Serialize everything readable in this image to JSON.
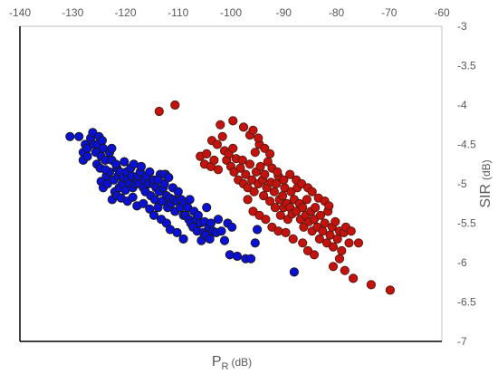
{
  "chart_data": {
    "type": "scatter",
    "title": "",
    "xlabel": {
      "main": "P",
      "sub": "R",
      "unit": "(dB)"
    },
    "ylabel": {
      "main": "SIR",
      "unit": "(dB)"
    },
    "xlim": [
      -140,
      -60
    ],
    "ylim": [
      -7,
      -3
    ],
    "x_ticks": [
      -140,
      -130,
      -120,
      -110,
      -100,
      -90,
      -80,
      -70,
      -60
    ],
    "y_ticks": [
      -3,
      -3.5,
      -4,
      -4.5,
      -5,
      -5.5,
      -6,
      -6.5,
      -7
    ],
    "x_axis_position": "top",
    "y_axis_position": "right",
    "grid": false,
    "legend": "none",
    "series": [
      {
        "color": "#0a10d8",
        "edge_color": "#1a1a1a",
        "points": [
          [
            -130.5,
            -4.4
          ],
          [
            -128.8,
            -4.4
          ],
          [
            -128,
            -4.6
          ],
          [
            -128,
            -4.7
          ],
          [
            -127.6,
            -4.5
          ],
          [
            -127.2,
            -4.55
          ],
          [
            -127.2,
            -4.65
          ],
          [
            -126.6,
            -4.42
          ],
          [
            -126.2,
            -4.35
          ],
          [
            -126,
            -4.5
          ],
          [
            -125.6,
            -4.6
          ],
          [
            -125.4,
            -4.75
          ],
          [
            -125.2,
            -4.5
          ],
          [
            -125,
            -4.4
          ],
          [
            -124.8,
            -4.8
          ],
          [
            -124.6,
            -4.65
          ],
          [
            -124.2,
            -4.55
          ],
          [
            -123.8,
            -4.7
          ],
          [
            -124.6,
            -4.97
          ],
          [
            -124.2,
            -5.05
          ],
          [
            -123.6,
            -4.9
          ],
          [
            -123.4,
            -5.0
          ],
          [
            -123,
            -4.85
          ],
          [
            -122.6,
            -4.7
          ],
          [
            -122.2,
            -4.95
          ],
          [
            -122,
            -5.1
          ],
          [
            -121.6,
            -4.8
          ],
          [
            -121.4,
            -4.9
          ],
          [
            -121.2,
            -5.05
          ],
          [
            -121,
            -4.85
          ],
          [
            -120.6,
            -5.0
          ],
          [
            -120.4,
            -4.92
          ],
          [
            -120.2,
            -4.72
          ],
          [
            -120,
            -5.08
          ],
          [
            -119.8,
            -4.85
          ],
          [
            -119.6,
            -4.95
          ],
          [
            -119.2,
            -5.0
          ],
          [
            -119,
            -4.8
          ],
          [
            -118.8,
            -4.9
          ],
          [
            -118.6,
            -5.05
          ],
          [
            -118.4,
            -4.75
          ],
          [
            -118.2,
            -5.0
          ],
          [
            -117.8,
            -4.95
          ],
          [
            -117.6,
            -4.9
          ],
          [
            -117.4,
            -5.0
          ],
          [
            -117.2,
            -4.85
          ],
          [
            -117,
            -4.78
          ],
          [
            -116.6,
            -5.05
          ],
          [
            -116.4,
            -4.95
          ],
          [
            -116.2,
            -5.1
          ],
          [
            -116,
            -4.9
          ],
          [
            -115.6,
            -5.0
          ],
          [
            -115.4,
            -4.85
          ],
          [
            -115.2,
            -5.15
          ],
          [
            -114.8,
            -5.0
          ],
          [
            -114.6,
            -4.95
          ],
          [
            -114.4,
            -5.2
          ],
          [
            -114.2,
            -5.05
          ],
          [
            -113.8,
            -5.3
          ],
          [
            -113.6,
            -5.1
          ],
          [
            -113.4,
            -4.88
          ],
          [
            -113,
            -5.22
          ],
          [
            -112.8,
            -5.05
          ],
          [
            -112.6,
            -5.0
          ],
          [
            -112.4,
            -4.88
          ],
          [
            -112.2,
            -5.15
          ],
          [
            -112,
            -5.3
          ],
          [
            -111.6,
            -5.18
          ],
          [
            -111.4,
            -5.25
          ],
          [
            -111,
            -5.05
          ],
          [
            -110.8,
            -5.2
          ],
          [
            -110.6,
            -5.35
          ],
          [
            -110.2,
            -5.22
          ],
          [
            -110,
            -5.1
          ],
          [
            -109.6,
            -5.3
          ],
          [
            -109.4,
            -5.2
          ],
          [
            -109,
            -5.4
          ],
          [
            -108.8,
            -5.25
          ],
          [
            -108.6,
            -5.4
          ],
          [
            -108.2,
            -5.3
          ],
          [
            -108,
            -5.45
          ],
          [
            -107.8,
            -5.2
          ],
          [
            -107.6,
            -5.5
          ],
          [
            -107.2,
            -5.55
          ],
          [
            -107,
            -5.35
          ],
          [
            -106.6,
            -5.45
          ],
          [
            -106.4,
            -5.6
          ],
          [
            -106.2,
            -5.4
          ],
          [
            -105.8,
            -5.5
          ],
          [
            -105.6,
            -5.72
          ],
          [
            -105.2,
            -5.62
          ],
          [
            -105,
            -5.48
          ],
          [
            -104.8,
            -5.65
          ],
          [
            -104.6,
            -5.3
          ],
          [
            -104.2,
            -5.55
          ],
          [
            -104,
            -5.7
          ],
          [
            -103.8,
            -5.5
          ],
          [
            -103.4,
            -5.6
          ],
          [
            -102.8,
            -5.62
          ],
          [
            -122.5,
            -5.2
          ],
          [
            -121.6,
            -5.15
          ],
          [
            -120.8,
            -5.18
          ],
          [
            -119.6,
            -5.22
          ],
          [
            -118.6,
            -5.17
          ],
          [
            -117.8,
            -5.28
          ],
          [
            -116.6,
            -5.25
          ],
          [
            -115.4,
            -5.32
          ],
          [
            -114.6,
            -5.4
          ],
          [
            -113.2,
            -5.45
          ],
          [
            -112.2,
            -5.5
          ],
          [
            -111.5,
            -5.58
          ],
          [
            -110.2,
            -5.62
          ],
          [
            -109,
            -5.7
          ],
          [
            -113.8,
            -4.95
          ],
          [
            -112.6,
            -4.88
          ],
          [
            -111.8,
            -4.92
          ],
          [
            -123,
            -4.6
          ],
          [
            -122.6,
            -4.55
          ],
          [
            -121.8,
            -4.75
          ],
          [
            -123.8,
            -4.82
          ],
          [
            -124.4,
            -4.45
          ],
          [
            -102.4,
            -5.45
          ],
          [
            -101.8,
            -5.6
          ],
          [
            -101.2,
            -5.72
          ],
          [
            -100.6,
            -5.5
          ],
          [
            -100.2,
            -5.9
          ],
          [
            -99.8,
            -5.55
          ],
          [
            -98.8,
            -5.92
          ],
          [
            -97.2,
            -5.95
          ],
          [
            -96.2,
            -5.95
          ],
          [
            -95.4,
            -5.75
          ],
          [
            -95,
            -5.58
          ],
          [
            -88,
            -6.12
          ]
        ]
      },
      {
        "color": "#c4130f",
        "edge_color": "#5a1a10",
        "points": [
          [
            -113.6,
            -4.08
          ],
          [
            -110.6,
            -4.0
          ],
          [
            -102,
            -4.25
          ],
          [
            -103.6,
            -4.45
          ],
          [
            -102.6,
            -4.5
          ],
          [
            -101.6,
            -4.4
          ],
          [
            -101.2,
            -4.58
          ],
          [
            -100.8,
            -4.7
          ],
          [
            -100.4,
            -4.62
          ],
          [
            -100,
            -4.78
          ],
          [
            -99.6,
            -4.55
          ],
          [
            -99.4,
            -4.85
          ],
          [
            -99,
            -4.68
          ],
          [
            -98.6,
            -4.95
          ],
          [
            -98.2,
            -4.8
          ],
          [
            -97.8,
            -4.7
          ],
          [
            -97.6,
            -5.0
          ],
          [
            -97.2,
            -4.88
          ],
          [
            -96.8,
            -5.05
          ],
          [
            -96.4,
            -4.75
          ],
          [
            -96,
            -4.95
          ],
          [
            -95.6,
            -5.1
          ],
          [
            -95.4,
            -4.6
          ],
          [
            -95.2,
            -4.85
          ],
          [
            -94.8,
            -5.0
          ],
          [
            -94.6,
            -4.5
          ],
          [
            -94.4,
            -4.78
          ],
          [
            -94,
            -4.95
          ],
          [
            -93.8,
            -5.15
          ],
          [
            -93.6,
            -4.88
          ],
          [
            -93.2,
            -5.05
          ],
          [
            -93,
            -4.72
          ],
          [
            -92.6,
            -5.22
          ],
          [
            -92.4,
            -4.98
          ],
          [
            -92.2,
            -4.8
          ],
          [
            -91.8,
            -5.1
          ],
          [
            -91.6,
            -5.3
          ],
          [
            -91.4,
            -5.0
          ],
          [
            -91,
            -4.9
          ],
          [
            -90.8,
            -5.2
          ],
          [
            -90.6,
            -5.4
          ],
          [
            -90.2,
            -5.15
          ],
          [
            -90,
            -5.3
          ],
          [
            -89.8,
            -5.05
          ],
          [
            -89.4,
            -5.25
          ],
          [
            -89.2,
            -5.45
          ],
          [
            -88.8,
            -5.3
          ],
          [
            -88.6,
            -5.1
          ],
          [
            -88.4,
            -5.38
          ],
          [
            -88,
            -5.2
          ],
          [
            -87.6,
            -5.35
          ],
          [
            -87.4,
            -5.05
          ],
          [
            -87,
            -5.25
          ],
          [
            -86.8,
            -5.45
          ],
          [
            -86.4,
            -5.3
          ],
          [
            -86.2,
            -5.55
          ],
          [
            -85.8,
            -5.4
          ],
          [
            -85.6,
            -5.2
          ],
          [
            -85.2,
            -5.48
          ],
          [
            -84.8,
            -5.35
          ],
          [
            -84.6,
            -5.6
          ],
          [
            -84.2,
            -5.45
          ],
          [
            -84,
            -5.3
          ],
          [
            -83.6,
            -5.55
          ],
          [
            -83.2,
            -5.7
          ],
          [
            -83,
            -5.4
          ],
          [
            -82.6,
            -5.6
          ],
          [
            -82.2,
            -5.5
          ],
          [
            -81.8,
            -5.75
          ],
          [
            -81.6,
            -5.35
          ],
          [
            -81.2,
            -5.65
          ],
          [
            -80.8,
            -5.55
          ],
          [
            -80.6,
            -5.8
          ],
          [
            -80.2,
            -5.48
          ],
          [
            -79.8,
            -5.7
          ],
          [
            -79.4,
            -5.6
          ],
          [
            -79,
            -5.85
          ],
          [
            -78.6,
            -5.62
          ],
          [
            -78.2,
            -5.55
          ],
          [
            -77.6,
            -5.75
          ],
          [
            -77.2,
            -5.6
          ],
          [
            -97.6,
            -4.28
          ],
          [
            -96.4,
            -4.38
          ],
          [
            -95.8,
            -4.32
          ],
          [
            -94.8,
            -4.42
          ],
          [
            -93.6,
            -4.55
          ],
          [
            -92.6,
            -4.62
          ],
          [
            -99.6,
            -4.2
          ],
          [
            -105.8,
            -4.65
          ],
          [
            -105,
            -4.75
          ],
          [
            -104.6,
            -4.62
          ],
          [
            -103.8,
            -4.78
          ],
          [
            -103.2,
            -4.7
          ],
          [
            -102.4,
            -4.82
          ],
          [
            -96.8,
            -5.2
          ],
          [
            -95.8,
            -5.35
          ],
          [
            -94.6,
            -5.4
          ],
          [
            -93.4,
            -5.45
          ],
          [
            -92.2,
            -5.55
          ],
          [
            -91,
            -5.6
          ],
          [
            -89.6,
            -5.62
          ],
          [
            -88.2,
            -5.7
          ],
          [
            -86.4,
            -5.75
          ],
          [
            -85.4,
            -5.85
          ],
          [
            -84.2,
            -5.9
          ],
          [
            -91.2,
            -4.85
          ],
          [
            -90,
            -4.95
          ],
          [
            -88.8,
            -4.88
          ],
          [
            -87.6,
            -4.95
          ],
          [
            -86.6,
            -5.0
          ],
          [
            -85.4,
            -5.05
          ],
          [
            -84.6,
            -5.1
          ],
          [
            -83.4,
            -5.18
          ],
          [
            -82.2,
            -5.22
          ],
          [
            -81.4,
            -5.28
          ],
          [
            -80.6,
            -6.05
          ],
          [
            -79.4,
            -5.95
          ],
          [
            -78.4,
            -6.1
          ],
          [
            -76.8,
            -6.2
          ],
          [
            -75.8,
            -5.75
          ],
          [
            -73.4,
            -6.28
          ],
          [
            -69.8,
            -6.35
          ]
        ]
      }
    ]
  }
}
